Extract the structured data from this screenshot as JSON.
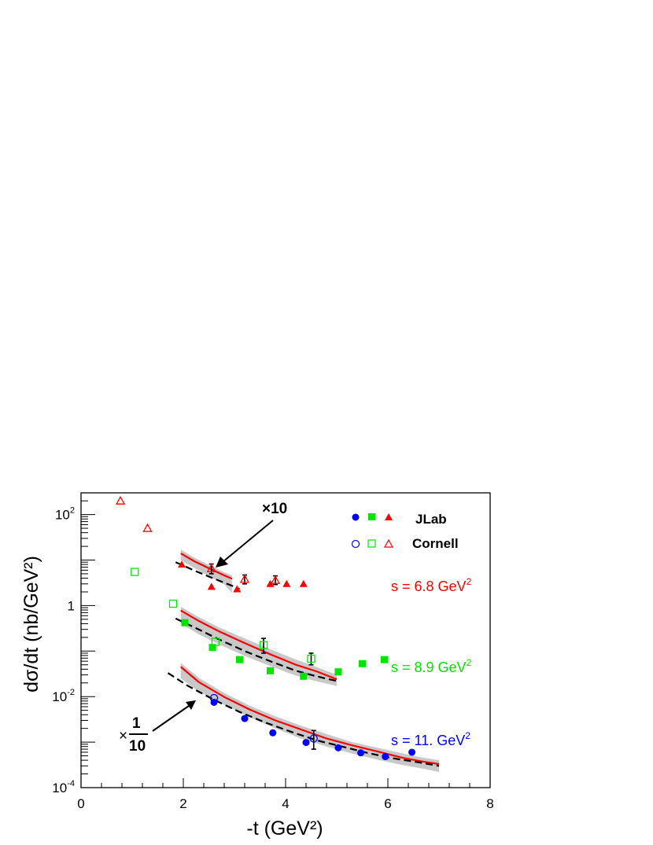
{
  "chart_data": {
    "type": "scatter",
    "xlabel": "-t (GeV²)",
    "ylabel": "dσ/dt (nb/GeV²)",
    "xlim": [
      0,
      8
    ],
    "ylim": [
      0.0001,
      300
    ],
    "y_scale": "log",
    "x_ticks": [
      "0",
      "2",
      "4",
      "6",
      "8"
    ],
    "y_ticks": [
      {
        "value": 0.0001,
        "base": "10",
        "exp": "-4"
      },
      {
        "value": 0.01,
        "base": "10",
        "exp": "-2"
      },
      {
        "value": 1,
        "base": "1",
        "exp": ""
      },
      {
        "value": 100,
        "base": "10",
        "exp": "2"
      }
    ],
    "legend": {
      "placement": "top-right",
      "entries": [
        {
          "label": "JLab",
          "style": "filled"
        },
        {
          "label": "Cornell",
          "style": "open"
        }
      ]
    },
    "colors": {
      "s68": "#ff0000",
      "s89": "#00e600",
      "s11": "#0000ff",
      "band": "#c8c8c8"
    },
    "annotations": {
      "times10": "×10",
      "times_symbol": "×",
      "frac_num": "1",
      "frac_den": "10",
      "s68": {
        "text": "s = 6.8 GeV",
        "sup": "2"
      },
      "s89": {
        "text": "s = 8.9 GeV",
        "sup": "2"
      },
      "s11": {
        "text": "s = 11. GeV",
        "sup": "2"
      }
    },
    "series": [
      {
        "group": "s68",
        "source": "JLab",
        "marker": "triangle-filled",
        "points": [
          [
            1.97,
            8.0
          ],
          [
            2.55,
            2.6
          ],
          [
            3.05,
            2.3
          ],
          [
            3.7,
            3.0
          ],
          [
            4.02,
            3.0
          ],
          [
            4.35,
            3.0
          ]
        ]
      },
      {
        "group": "s68",
        "source": "Cornell",
        "marker": "triangle-open",
        "points": [
          [
            0.77,
            200
          ],
          [
            1.3,
            50
          ],
          [
            2.55,
            6.5
          ],
          [
            3.2,
            3.8
          ],
          [
            3.8,
            3.6
          ]
        ]
      },
      {
        "group": "s89",
        "source": "JLab",
        "marker": "square-filled",
        "points": [
          [
            2.03,
            0.42
          ],
          [
            2.57,
            0.12
          ],
          [
            3.1,
            0.065
          ],
          [
            3.7,
            0.037
          ],
          [
            4.35,
            0.028
          ],
          [
            5.03,
            0.035
          ],
          [
            5.5,
            0.053
          ],
          [
            5.93,
            0.065
          ]
        ]
      },
      {
        "group": "s89",
        "source": "Cornell",
        "marker": "square-open",
        "points": [
          [
            1.05,
            5.5
          ],
          [
            1.8,
            1.1
          ],
          [
            2.63,
            0.16
          ],
          [
            3.57,
            0.135
          ],
          [
            4.5,
            0.068
          ]
        ]
      },
      {
        "group": "s11",
        "source": "JLab",
        "marker": "circle-filled",
        "points": [
          [
            2.6,
            0.0075
          ],
          [
            3.2,
            0.0033
          ],
          [
            3.75,
            0.0016
          ],
          [
            4.4,
            0.00098
          ],
          [
            5.03,
            0.00075
          ],
          [
            5.47,
            0.00058
          ],
          [
            5.95,
            0.00048
          ],
          [
            6.47,
            0.0006
          ]
        ]
      },
      {
        "group": "s11",
        "source": "Cornell",
        "marker": "circle-open",
        "points": [
          [
            2.6,
            0.0093
          ],
          [
            4.55,
            0.0012
          ]
        ]
      }
    ],
    "error_bars": [
      {
        "x": 2.55,
        "lo": 5.0,
        "hi": 8.2
      },
      {
        "x": 3.2,
        "lo": 3.0,
        "hi": 4.7
      },
      {
        "x": 3.8,
        "lo": 2.9,
        "hi": 4.5
      },
      {
        "x": 3.57,
        "lo": 0.09,
        "hi": 0.19
      },
      {
        "x": 4.5,
        "lo": 0.05,
        "hi": 0.09
      },
      {
        "x": 4.55,
        "lo": 0.0007,
        "hi": 0.0018
      }
    ],
    "curves": [
      {
        "group": "s68",
        "style": "solid",
        "points": [
          [
            1.95,
            14.0
          ],
          [
            2.2,
            9.6
          ],
          [
            2.5,
            6.6
          ],
          [
            2.8,
            4.6
          ],
          [
            2.95,
            3.9
          ]
        ]
      },
      {
        "group": "s68",
        "style": "dashed",
        "points": [
          [
            1.85,
            9.0
          ],
          [
            2.2,
            6.0
          ],
          [
            2.6,
            3.9
          ],
          [
            3.0,
            2.6
          ],
          [
            3.1,
            2.3
          ]
        ]
      },
      {
        "group": "s68",
        "style": "band",
        "upper": [
          [
            1.95,
            17.0
          ],
          [
            2.2,
            11.5
          ],
          [
            2.5,
            7.8
          ],
          [
            2.8,
            5.4
          ],
          [
            2.95,
            4.6
          ]
        ],
        "lower": [
          [
            1.95,
            10.0
          ],
          [
            2.2,
            6.8
          ],
          [
            2.5,
            4.4
          ],
          [
            2.8,
            2.9
          ],
          [
            2.95,
            1.9
          ]
        ]
      },
      {
        "group": "s89",
        "style": "solid",
        "points": [
          [
            1.95,
            0.78
          ],
          [
            2.3,
            0.46
          ],
          [
            2.7,
            0.27
          ],
          [
            3.2,
            0.15
          ],
          [
            3.7,
            0.085
          ],
          [
            4.2,
            0.05
          ],
          [
            4.6,
            0.036
          ],
          [
            5.0,
            0.024
          ]
        ]
      },
      {
        "group": "s89",
        "style": "dashed",
        "points": [
          [
            1.85,
            0.52
          ],
          [
            2.3,
            0.3
          ],
          [
            2.7,
            0.18
          ],
          [
            3.2,
            0.1
          ],
          [
            3.7,
            0.06
          ],
          [
            4.2,
            0.037
          ],
          [
            4.6,
            0.028
          ],
          [
            5.0,
            0.022
          ]
        ]
      },
      {
        "group": "s89",
        "style": "band",
        "upper": [
          [
            1.95,
            0.95
          ],
          [
            2.3,
            0.56
          ],
          [
            2.7,
            0.33
          ],
          [
            3.2,
            0.19
          ],
          [
            3.7,
            0.11
          ],
          [
            4.2,
            0.065
          ],
          [
            4.6,
            0.045
          ],
          [
            5.0,
            0.03
          ]
        ]
      },
      {
        "group": "s11",
        "style": "solid",
        "points": [
          [
            1.95,
            0.045
          ],
          [
            2.3,
            0.021
          ],
          [
            2.8,
            0.0098
          ],
          [
            3.3,
            0.0052
          ],
          [
            3.8,
            0.003
          ],
          [
            4.3,
            0.0019
          ],
          [
            4.8,
            0.0012
          ],
          [
            5.3,
            0.00085
          ],
          [
            5.8,
            0.00062
          ],
          [
            6.3,
            0.00045
          ],
          [
            6.7,
            0.00037
          ],
          [
            7.0,
            0.00033
          ]
        ]
      },
      {
        "group": "s11",
        "style": "dashed",
        "points": [
          [
            1.7,
            0.033
          ],
          [
            2.1,
            0.017
          ],
          [
            2.6,
            0.0085
          ],
          [
            3.1,
            0.0046
          ],
          [
            3.6,
            0.0027
          ],
          [
            4.1,
            0.0017
          ],
          [
            4.6,
            0.0011
          ],
          [
            5.1,
            0.0008
          ],
          [
            5.6,
            0.00058
          ],
          [
            6.1,
            0.00044
          ],
          [
            6.6,
            0.00036
          ],
          [
            7.0,
            0.0003
          ]
        ]
      },
      {
        "group": "s11",
        "style": "band",
        "upper": [
          [
            1.95,
            0.055
          ],
          [
            2.3,
            0.026
          ],
          [
            2.8,
            0.012
          ],
          [
            3.3,
            0.0063
          ],
          [
            3.8,
            0.0037
          ],
          [
            4.3,
            0.0023
          ],
          [
            4.8,
            0.0015
          ],
          [
            5.3,
            0.001
          ],
          [
            5.8,
            0.00075
          ],
          [
            6.3,
            0.00056
          ],
          [
            6.7,
            0.00045
          ],
          [
            7.0,
            0.0004
          ]
        ],
        "lower": [
          [
            1.95,
            0.025
          ],
          [
            2.3,
            0.013
          ],
          [
            2.8,
            0.0066
          ],
          [
            3.3,
            0.0035
          ],
          [
            3.8,
            0.002
          ],
          [
            4.3,
            0.0012
          ],
          [
            4.8,
            0.0008
          ],
          [
            5.3,
            0.00056
          ],
          [
            5.8,
            0.00041
          ],
          [
            6.3,
            0.00031
          ],
          [
            6.7,
            0.00026
          ],
          [
            7.0,
            0.00022
          ]
        ]
      }
    ]
  }
}
